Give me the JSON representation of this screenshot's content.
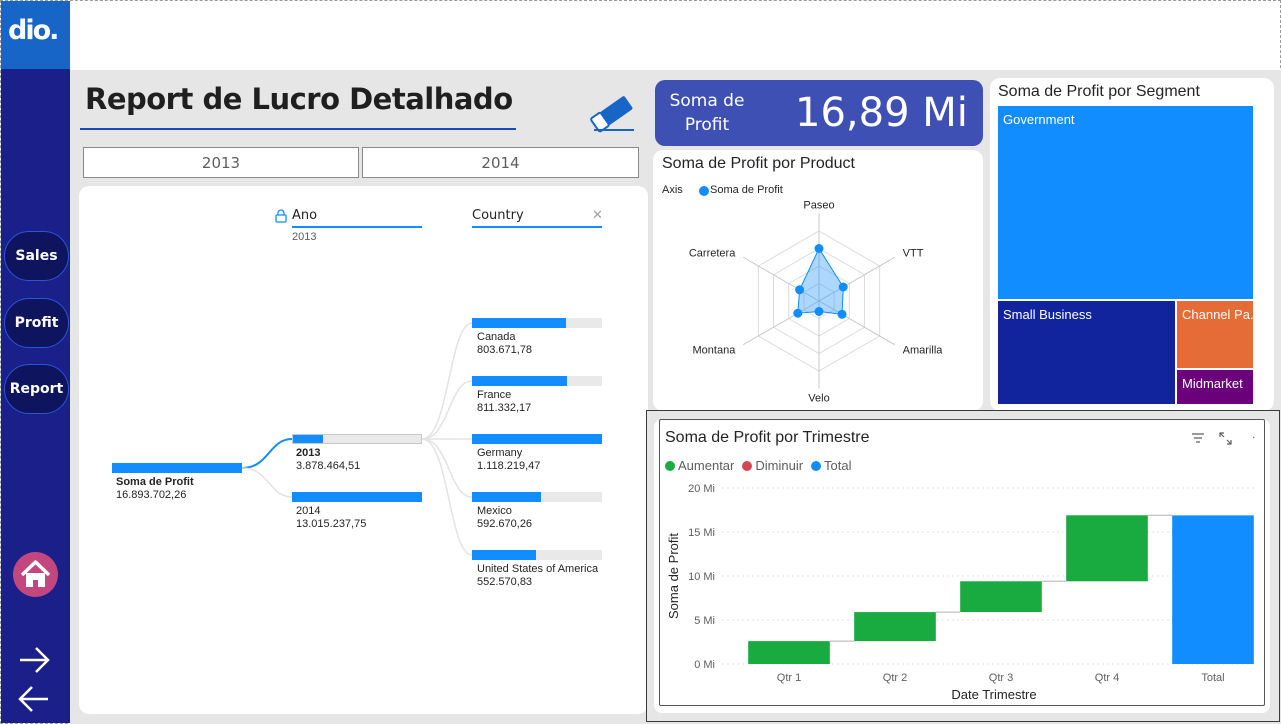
{
  "logo": {
    "text": "dio."
  },
  "nav": {
    "sales": "Sales",
    "profit": "Profit",
    "report": "Report"
  },
  "page_title": "Report de Lucro Detalhado",
  "year_buttons": [
    "2013",
    "2014"
  ],
  "kpi": {
    "label": "Soma de Profit",
    "value": "16,89 Mi"
  },
  "colors": {
    "accent": "#118dff",
    "navy": "#1a1f8a",
    "green": "#1aab40",
    "red": "#d64554"
  },
  "decomp": {
    "col_ano": "Ano",
    "col_ano_value": "2013",
    "col_country": "Country",
    "root": {
      "label": "Soma de Profit",
      "value": "16.893.702,26"
    },
    "years": [
      {
        "label": "2013",
        "value": "3.878.464,51",
        "fill": 0.23
      },
      {
        "label": "2014",
        "value": "13.015.237,75",
        "fill": 0.77
      }
    ],
    "countries": [
      {
        "label": "Canada",
        "value": "803.671,78",
        "fill": 0.72
      },
      {
        "label": "France",
        "value": "811.332,17",
        "fill": 0.73
      },
      {
        "label": "Germany",
        "value": "1.118.219,47",
        "fill": 1.0
      },
      {
        "label": "Mexico",
        "value": "592.670,26",
        "fill": 0.53
      },
      {
        "label": "United States of America",
        "value": "552.570,83",
        "fill": 0.49
      }
    ]
  },
  "radar": {
    "title": "Soma de Profit por Product",
    "legend_axis": "Axis",
    "legend_series": "Soma de Profit",
    "axes": [
      "Paseo",
      "VTT",
      "Amarilla",
      "Velo",
      "Montana",
      "Carretera"
    ],
    "values": [
      0.75,
      0.4,
      0.38,
      0.15,
      0.35,
      0.32
    ]
  },
  "treemap": {
    "title": "Soma de Profit por Segment",
    "items": [
      {
        "label": "Government",
        "color": "#118dff"
      },
      {
        "label": "Small Business",
        "color": "#12239e"
      },
      {
        "label": "Channel Pa...",
        "color": "#e66c37"
      },
      {
        "label": "Midmarket",
        "color": "#6b007b"
      }
    ]
  },
  "waterfall": {
    "title": "Soma de Profit por Trimestre",
    "legend": [
      {
        "label": "Aumentar",
        "color": "#1aab40"
      },
      {
        "label": "Diminuir",
        "color": "#d64554"
      },
      {
        "label": "Total",
        "color": "#118dff"
      }
    ],
    "xlabel": "Date Trimestre",
    "ylabel": "Soma de Profit",
    "yticks": [
      "0 Mi",
      "5 Mi",
      "10 Mi",
      "15 Mi",
      "20 Mi"
    ]
  },
  "chart_data": {
    "type": "bar",
    "title": "Soma de Profit por Trimestre",
    "subtype": "waterfall",
    "categories": [
      "Qtr 1",
      "Qtr 2",
      "Qtr 3",
      "Qtr 4",
      "Total"
    ],
    "series": [
      {
        "name": "Aumentar",
        "values": [
          2.6,
          3.3,
          3.5,
          7.5,
          null
        ]
      },
      {
        "name": "Total",
        "values": [
          null,
          null,
          null,
          null,
          16.89
        ]
      }
    ],
    "xlabel": "Date Trimestre",
    "ylabel": "Soma de Profit",
    "ylim": [
      0,
      20
    ],
    "unit": "Mi",
    "grid": true,
    "legend": "top-left"
  }
}
